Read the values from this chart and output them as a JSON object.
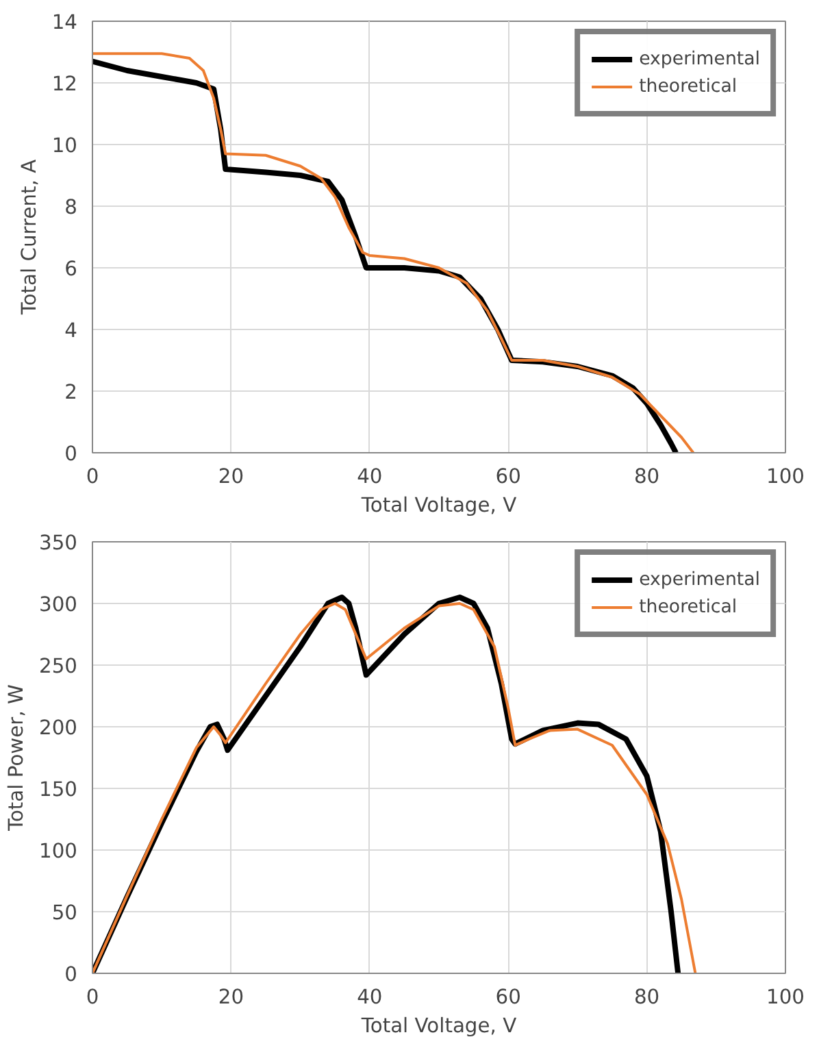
{
  "chart_data": [
    {
      "type": "line",
      "xlabel": "Total Voltage, V",
      "ylabel": "Total Current, A",
      "xlim": [
        0,
        100
      ],
      "ylim": [
        0,
        14
      ],
      "xticks": [
        0,
        20,
        40,
        60,
        80,
        100
      ],
      "yticks": [
        0,
        2,
        4,
        6,
        8,
        10,
        12,
        14
      ],
      "grid": true,
      "legend": "top right",
      "marker": "none",
      "series": [
        {
          "name": "experimental",
          "color": "#000000",
          "x": [
            0,
            5,
            10,
            15,
            17.5,
            18.5,
            19.2,
            25,
            30,
            34,
            36,
            38,
            39.5,
            45,
            50,
            53,
            56,
            58.5,
            60.5,
            65,
            70,
            75,
            78,
            80,
            82,
            83.5,
            84.2
          ],
          "values": [
            12.7,
            12.4,
            12.2,
            12.0,
            11.8,
            10.5,
            9.2,
            9.1,
            9.0,
            8.8,
            8.2,
            7.0,
            6.0,
            6.0,
            5.9,
            5.7,
            5.0,
            4.0,
            3.0,
            2.95,
            2.8,
            2.5,
            2.1,
            1.6,
            0.9,
            0.3,
            0
          ]
        },
        {
          "name": "theoretical",
          "color": "#ed7d31",
          "x": [
            0,
            10,
            14,
            16,
            17.5,
            18.5,
            19.2,
            25,
            30,
            33,
            35,
            37,
            39,
            40,
            45,
            50,
            54,
            57,
            59,
            60.5,
            62,
            65,
            70,
            75,
            79,
            82,
            85,
            86.7
          ],
          "values": [
            12.95,
            12.95,
            12.8,
            12.4,
            11.5,
            10.5,
            9.7,
            9.65,
            9.3,
            8.9,
            8.3,
            7.3,
            6.5,
            6.4,
            6.3,
            6.0,
            5.5,
            4.6,
            3.7,
            3.0,
            3.0,
            3.0,
            2.8,
            2.45,
            1.9,
            1.2,
            0.5,
            0
          ]
        }
      ]
    },
    {
      "type": "line",
      "xlabel": "Total Voltage, V",
      "ylabel": "Total Power, W",
      "xlim": [
        0,
        100
      ],
      "ylim": [
        0,
        350
      ],
      "xticks": [
        0,
        20,
        40,
        60,
        80,
        100
      ],
      "yticks": [
        0,
        50,
        100,
        150,
        200,
        250,
        300,
        350
      ],
      "grid": true,
      "legend": "top right",
      "marker": "none",
      "series": [
        {
          "name": "experimental",
          "color": "#000000",
          "x": [
            0,
            5,
            10,
            15,
            17,
            18,
            19,
            19.5,
            25,
            30,
            34,
            36,
            37,
            38,
            39.5,
            45,
            50,
            53,
            55,
            57,
            59,
            60.5,
            61,
            65,
            70,
            73,
            77,
            80,
            82,
            83.5,
            84.5
          ],
          "values": [
            0,
            62,
            122,
            180,
            200,
            202,
            190,
            181,
            225,
            265,
            300,
            305,
            300,
            280,
            242,
            275,
            300,
            305,
            300,
            280,
            235,
            190,
            186,
            197,
            203,
            202,
            190,
            160,
            115,
            50,
            0
          ]
        },
        {
          "name": "theoretical",
          "color": "#ed7d31",
          "x": [
            0,
            5,
            10,
            15,
            17.5,
            18.5,
            19.2,
            25,
            30,
            33,
            35,
            36.5,
            38,
            39.5,
            45,
            50,
            53,
            55,
            58,
            60,
            61,
            63,
            66,
            70,
            75,
            80,
            83,
            85,
            87
          ],
          "values": [
            0,
            63,
            125,
            183,
            200,
            193,
            187,
            235,
            275,
            295,
            300,
            295,
            275,
            255,
            280,
            298,
            300,
            295,
            265,
            215,
            185,
            190,
            197,
            198,
            185,
            145,
            105,
            60,
            0
          ]
        }
      ]
    }
  ]
}
